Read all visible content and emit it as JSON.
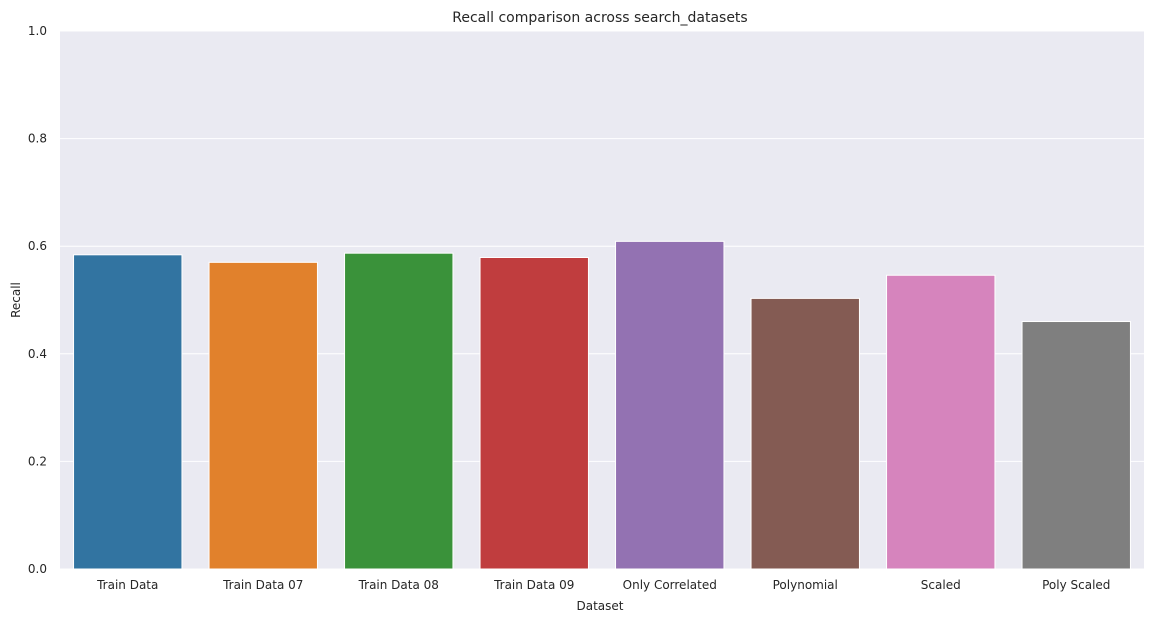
{
  "chart_data": {
    "type": "bar",
    "title": "Recall comparison across search_datasets",
    "xlabel": "Dataset",
    "ylabel": "Recall",
    "ylim": [
      0,
      1.0
    ],
    "yticks": [
      "0.0",
      "0.2",
      "0.4",
      "0.6",
      "0.8",
      "1.0"
    ],
    "grid": true,
    "categories": [
      "Train Data",
      "Train Data 07",
      "Train Data 08",
      "Train Data 09",
      "Only Correlated",
      "Polynomial",
      "Scaled",
      "Poly Scaled"
    ],
    "values": [
      0.584,
      0.57,
      0.587,
      0.579,
      0.609,
      0.503,
      0.546,
      0.46
    ],
    "colors": [
      "#3274a1",
      "#e1812c",
      "#3a923a",
      "#c03d3e",
      "#9372b2",
      "#845b53",
      "#d684bd",
      "#7f7f7f"
    ],
    "background": "#eaeaf2",
    "grid_color": "#ffffff"
  }
}
